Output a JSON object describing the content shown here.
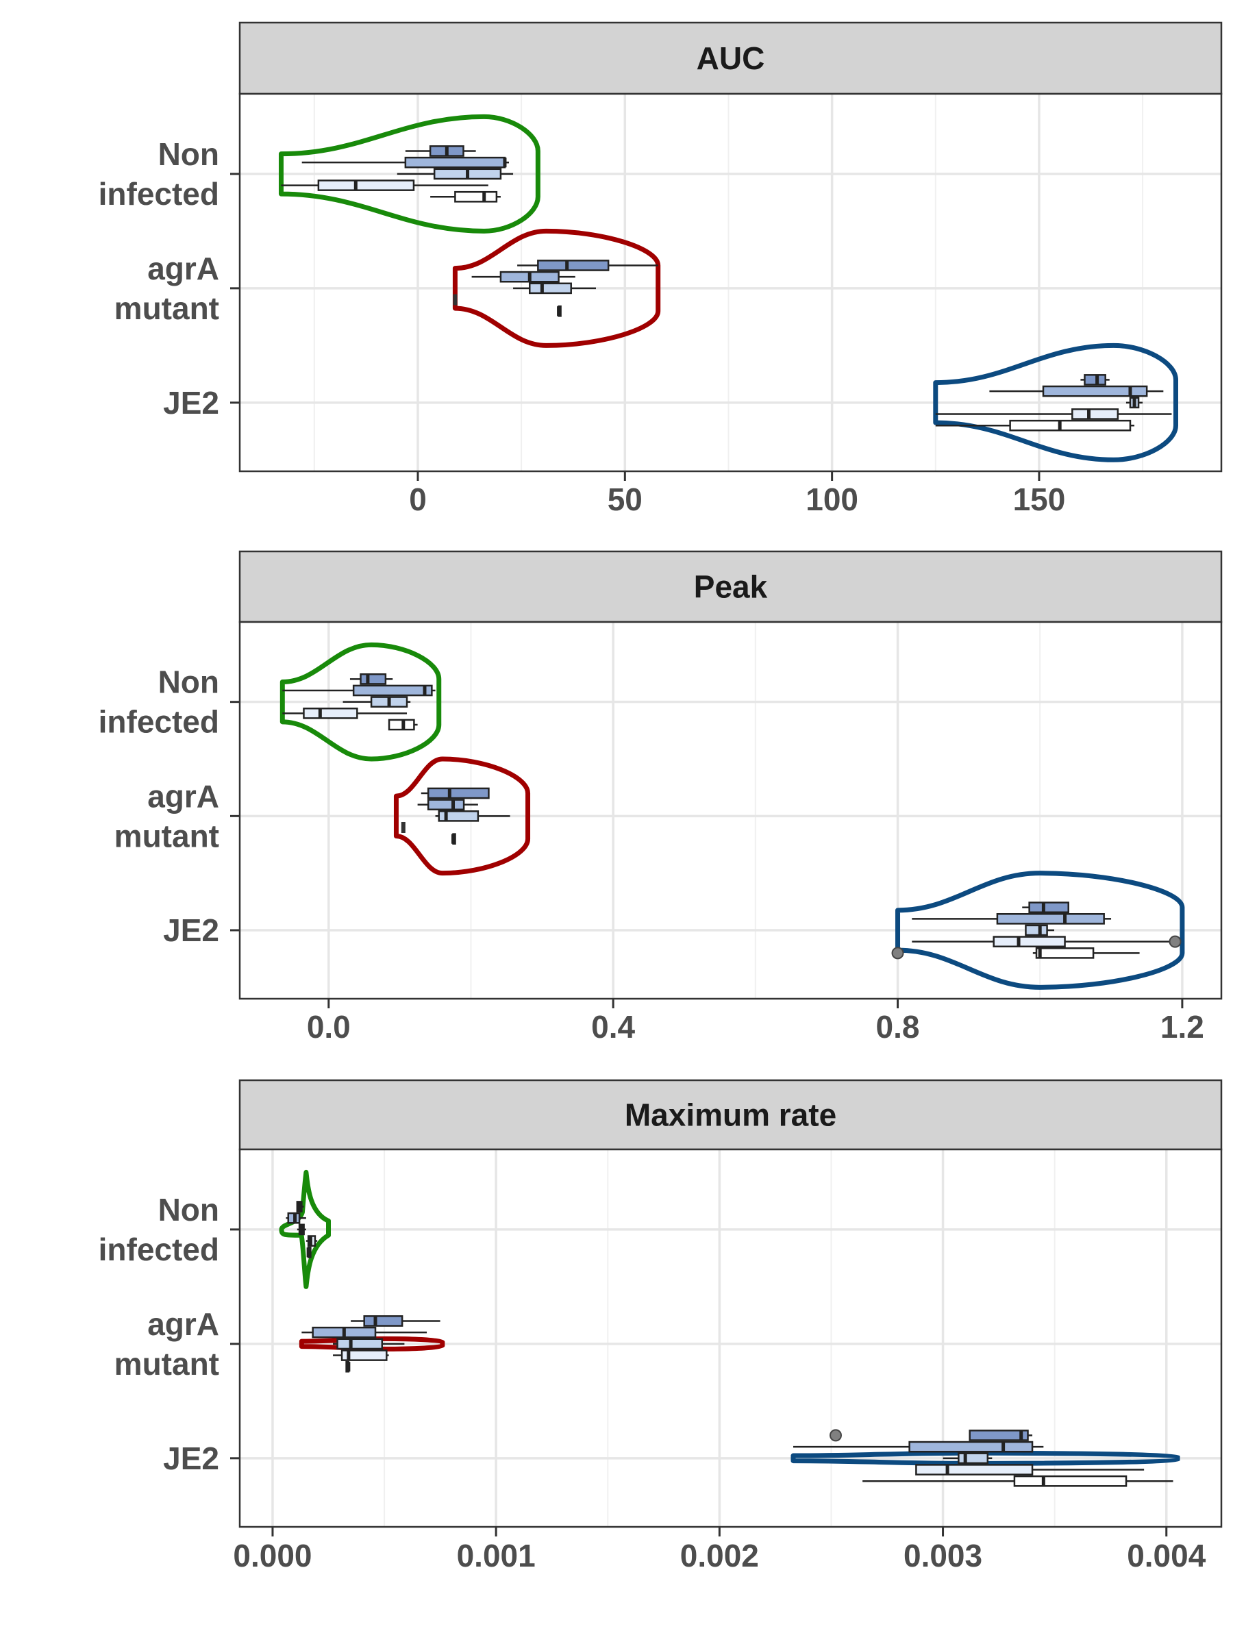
{
  "colors": {
    "non_infected": "#188a0a",
    "agra_mutant": "#a00000",
    "je2": "#0c4a80",
    "strip_fill": "#d3d3d3",
    "grid": "#e6e6e6",
    "box_fills": [
      "#7f98c8",
      "#9fb6dc",
      "#c1d3ec",
      "#e6eefa",
      "#ffffff"
    ]
  },
  "chart_data": [
    {
      "type": "violin-boxplot",
      "title": "AUC",
      "categories": [
        "Non\ninfected",
        "agrA\nmutant",
        "JE2"
      ],
      "xlim": [
        -43,
        194
      ],
      "xticks": [
        0,
        50,
        100,
        150
      ],
      "xtick_labels": [
        "0",
        "50",
        "100",
        "150"
      ],
      "violins": [
        {
          "group": "Non infected",
          "color_key": "non_infected",
          "xmin": -33,
          "xmax": 29,
          "mode": 16
        },
        {
          "group": "agrA mutant",
          "color_key": "agra_mutant",
          "xmin": 9,
          "xmax": 58,
          "mode": 31
        },
        {
          "group": "JE2",
          "color_key": "je2",
          "xmin": 125,
          "xmax": 183,
          "mode": 168
        }
      ],
      "boxes": [
        {
          "group": "Non infected",
          "offset": -0.2,
          "lo": -3,
          "q1": 3,
          "median": 7,
          "q3": 11,
          "hi": 14
        },
        {
          "group": "Non infected",
          "offset": -0.1,
          "lo": -28,
          "q1": -3,
          "median": 21,
          "q3": 21,
          "hi": 22
        },
        {
          "group": "Non infected",
          "offset": 0.0,
          "lo": -5,
          "q1": 4,
          "median": 12,
          "q3": 20,
          "hi": 23
        },
        {
          "group": "Non infected",
          "offset": 0.1,
          "lo": -33,
          "q1": -24,
          "median": -15,
          "q3": -1,
          "hi": 17
        },
        {
          "group": "Non infected",
          "offset": 0.2,
          "lo": 3,
          "q1": 9,
          "median": 16,
          "q3": 19,
          "hi": 20
        },
        {
          "group": "agrA mutant",
          "offset": -0.2,
          "lo": 24,
          "q1": 29,
          "median": 36,
          "q3": 46,
          "hi": 58
        },
        {
          "group": "agrA mutant",
          "offset": -0.1,
          "lo": 13,
          "q1": 20,
          "median": 27,
          "q3": 34,
          "hi": 38
        },
        {
          "group": "agrA mutant",
          "offset": 0.0,
          "lo": 23,
          "q1": 27,
          "median": 30,
          "q3": 37,
          "hi": 43
        },
        {
          "group": "agrA mutant",
          "offset": 0.2,
          "lo": 34,
          "q1": 34,
          "median": 34,
          "q3": 34,
          "hi": 34
        }
      ],
      "extra_points": [
        {
          "group": "agrA mutant",
          "offset": 0.1,
          "x": 9
        }
      ],
      "boxes_2": [
        {
          "group": "JE2",
          "offset": -0.2,
          "lo": 160,
          "q1": 161,
          "median": 164,
          "q3": 166,
          "hi": 167
        },
        {
          "group": "JE2",
          "offset": -0.1,
          "lo": 138,
          "q1": 151,
          "median": 172,
          "q3": 176,
          "hi": 180
        },
        {
          "group": "JE2",
          "offset": 0.0,
          "lo": 171,
          "q1": 172,
          "median": 173,
          "q3": 174,
          "hi": 175
        },
        {
          "group": "JE2",
          "offset": 0.1,
          "lo": 125,
          "q1": 158,
          "median": 162,
          "q3": 169,
          "hi": 182
        },
        {
          "group": "JE2",
          "offset": 0.2,
          "lo": 125,
          "q1": 143,
          "median": 155,
          "q3": 172,
          "hi": 173
        }
      ]
    },
    {
      "type": "violin-boxplot",
      "title": "Peak",
      "categories": [
        "Non\ninfected",
        "agrA\nmutant",
        "JE2"
      ],
      "xlim": [
        -0.125,
        1.255
      ],
      "xticks": [
        0.0,
        0.4,
        0.8,
        1.2
      ],
      "xtick_labels": [
        "0.0",
        "0.4",
        "0.8",
        "1.2"
      ],
      "violins": [
        {
          "group": "Non infected",
          "color_key": "non_infected",
          "xmin": -0.065,
          "xmax": 0.155,
          "mode": 0.06
        },
        {
          "group": "agrA mutant",
          "color_key": "agra_mutant",
          "xmin": 0.095,
          "xmax": 0.28,
          "mode": 0.16
        },
        {
          "group": "JE2",
          "color_key": "je2",
          "xmin": 0.8,
          "xmax": 1.2,
          "mode": 1.0
        }
      ],
      "boxes": [
        {
          "group": "Non infected",
          "offset": -0.2,
          "lo": 0.03,
          "q1": 0.045,
          "median": 0.055,
          "q3": 0.08,
          "hi": 0.09
        },
        {
          "group": "Non infected",
          "offset": -0.1,
          "lo": -0.065,
          "q1": 0.035,
          "median": 0.135,
          "q3": 0.145,
          "hi": 0.15
        },
        {
          "group": "Non infected",
          "offset": 0.0,
          "lo": 0.02,
          "q1": 0.06,
          "median": 0.085,
          "q3": 0.11,
          "hi": 0.115
        },
        {
          "group": "Non infected",
          "offset": 0.1,
          "lo": -0.065,
          "q1": -0.035,
          "median": -0.012,
          "q3": 0.04,
          "hi": 0.11
        },
        {
          "group": "Non infected",
          "offset": 0.2,
          "lo": 0.085,
          "q1": 0.085,
          "median": 0.105,
          "q3": 0.12,
          "hi": 0.125
        },
        {
          "group": "agrA mutant",
          "offset": -0.2,
          "lo": 0.13,
          "q1": 0.14,
          "median": 0.17,
          "q3": 0.225,
          "hi": 0.225
        },
        {
          "group": "agrA mutant",
          "offset": -0.1,
          "lo": 0.125,
          "q1": 0.14,
          "median": 0.175,
          "q3": 0.19,
          "hi": 0.21
        },
        {
          "group": "agrA mutant",
          "offset": 0.0,
          "lo": 0.15,
          "q1": 0.155,
          "median": 0.165,
          "q3": 0.21,
          "hi": 0.255
        },
        {
          "group": "agrA mutant",
          "offset": 0.2,
          "lo": 0.175,
          "q1": 0.175,
          "median": 0.175,
          "q3": 0.175,
          "hi": 0.175
        }
      ],
      "extra_points": [
        {
          "group": "agrA mutant",
          "offset": 0.1,
          "x": 0.105
        }
      ],
      "boxes_2": [
        {
          "group": "JE2",
          "offset": -0.2,
          "lo": 0.975,
          "q1": 0.985,
          "median": 1.005,
          "q3": 1.04,
          "hi": 1.04
        },
        {
          "group": "JE2",
          "offset": -0.1,
          "lo": 0.82,
          "q1": 0.94,
          "median": 1.035,
          "q3": 1.09,
          "hi": 1.1
        },
        {
          "group": "JE2",
          "offset": 0.0,
          "lo": 0.98,
          "q1": 0.98,
          "median": 1.0,
          "q3": 1.01,
          "hi": 1.02
        },
        {
          "group": "JE2",
          "offset": 0.1,
          "lo": 0.82,
          "q1": 0.935,
          "median": 0.97,
          "q3": 1.035,
          "hi": 1.19
        },
        {
          "group": "JE2",
          "offset": 0.2,
          "lo": 0.99,
          "q1": 0.995,
          "median": 1.0,
          "q3": 1.075,
          "hi": 1.14
        }
      ],
      "outliers": [
        {
          "group": "JE2",
          "offset": 0.2,
          "x": 0.8
        },
        {
          "group": "JE2",
          "offset": 0.1,
          "x": 1.19
        }
      ]
    },
    {
      "type": "violin-boxplot",
      "title": "Maximum rate",
      "categories": [
        "Non\ninfected",
        "agrA\nmutant",
        "JE2"
      ],
      "xlim": [
        -0.000147,
        0.004246
      ],
      "xticks": [
        0.0,
        0.001,
        0.002,
        0.003,
        0.004
      ],
      "xtick_labels": [
        "0.000",
        "0.001",
        "0.002",
        "0.003",
        "0.004"
      ],
      "violins": [
        {
          "group": "Non infected",
          "color_key": "non_infected",
          "xmin": 4e-05,
          "xmax": 0.00025,
          "mode": 0.00015,
          "shape": "spike"
        },
        {
          "group": "agrA mutant",
          "color_key": "agra_mutant",
          "xmin": 0.00013,
          "xmax": 0.00076,
          "mode": 0.0005,
          "shape": "flat"
        },
        {
          "group": "JE2",
          "color_key": "je2",
          "xmin": 0.00233,
          "xmax": 0.00405,
          "mode": 0.0031,
          "shape": "flat"
        }
      ],
      "boxes": [
        {
          "group": "Non infected",
          "offset": -0.2,
          "lo": 0.00011,
          "q1": 0.00011,
          "median": 0.00012,
          "q3": 0.00013,
          "hi": 0.00014
        },
        {
          "group": "Non infected",
          "offset": -0.1,
          "lo": 6e-05,
          "q1": 7e-05,
          "median": 0.0001,
          "q3": 0.00012,
          "hi": 0.00015
        },
        {
          "group": "Non infected",
          "offset": 0.0,
          "lo": 0.00011,
          "q1": 0.00012,
          "median": 0.00013,
          "q3": 0.00014,
          "hi": 0.00015
        },
        {
          "group": "Non infected",
          "offset": 0.1,
          "lo": 0.00015,
          "q1": 0.00016,
          "median": 0.00017,
          "q3": 0.00019,
          "hi": 0.0002
        },
        {
          "group": "Non infected",
          "offset": 0.2,
          "lo": 0.00016,
          "q1": 0.00016,
          "median": 0.00016,
          "q3": 0.00017,
          "hi": 0.00017
        },
        {
          "group": "agrA mutant",
          "offset": -0.2,
          "lo": 0.00035,
          "q1": 0.00041,
          "median": 0.00046,
          "q3": 0.00058,
          "hi": 0.00075
        },
        {
          "group": "agrA mutant",
          "offset": -0.1,
          "lo": 0.00013,
          "q1": 0.00018,
          "median": 0.00032,
          "q3": 0.00046,
          "hi": 0.00069
        },
        {
          "group": "agrA mutant",
          "offset": 0.0,
          "lo": 0.00027,
          "q1": 0.00029,
          "median": 0.00035,
          "q3": 0.00049,
          "hi": 0.00059
        },
        {
          "group": "agrA mutant",
          "offset": 0.1,
          "lo": 0.00027,
          "q1": 0.00031,
          "median": 0.00034,
          "q3": 0.00051,
          "hi": 0.00052
        },
        {
          "group": "agrA mutant",
          "offset": 0.2,
          "lo": 0.00033,
          "q1": 0.00033,
          "median": 0.00034,
          "q3": 0.00034,
          "hi": 0.00034
        }
      ],
      "extra_points": [],
      "boxes_2": [
        {
          "group": "JE2",
          "offset": -0.2,
          "lo": 0.00312,
          "q1": 0.00312,
          "median": 0.00335,
          "q3": 0.00338,
          "hi": 0.0034
        },
        {
          "group": "JE2",
          "offset": -0.1,
          "lo": 0.00233,
          "q1": 0.00285,
          "median": 0.00327,
          "q3": 0.0034,
          "hi": 0.00345
        },
        {
          "group": "JE2",
          "offset": 0.0,
          "lo": 0.003,
          "q1": 0.00307,
          "median": 0.0031,
          "q3": 0.0032,
          "hi": 0.00322
        },
        {
          "group": "JE2",
          "offset": 0.1,
          "lo": 0.00288,
          "q1": 0.00288,
          "median": 0.00302,
          "q3": 0.0034,
          "hi": 0.0039
        },
        {
          "group": "JE2",
          "offset": 0.2,
          "lo": 0.00264,
          "q1": 0.00332,
          "median": 0.00345,
          "q3": 0.00382,
          "hi": 0.00403
        }
      ],
      "outliers": [
        {
          "group": "JE2",
          "offset": -0.2,
          "x": 0.00252
        }
      ]
    }
  ]
}
